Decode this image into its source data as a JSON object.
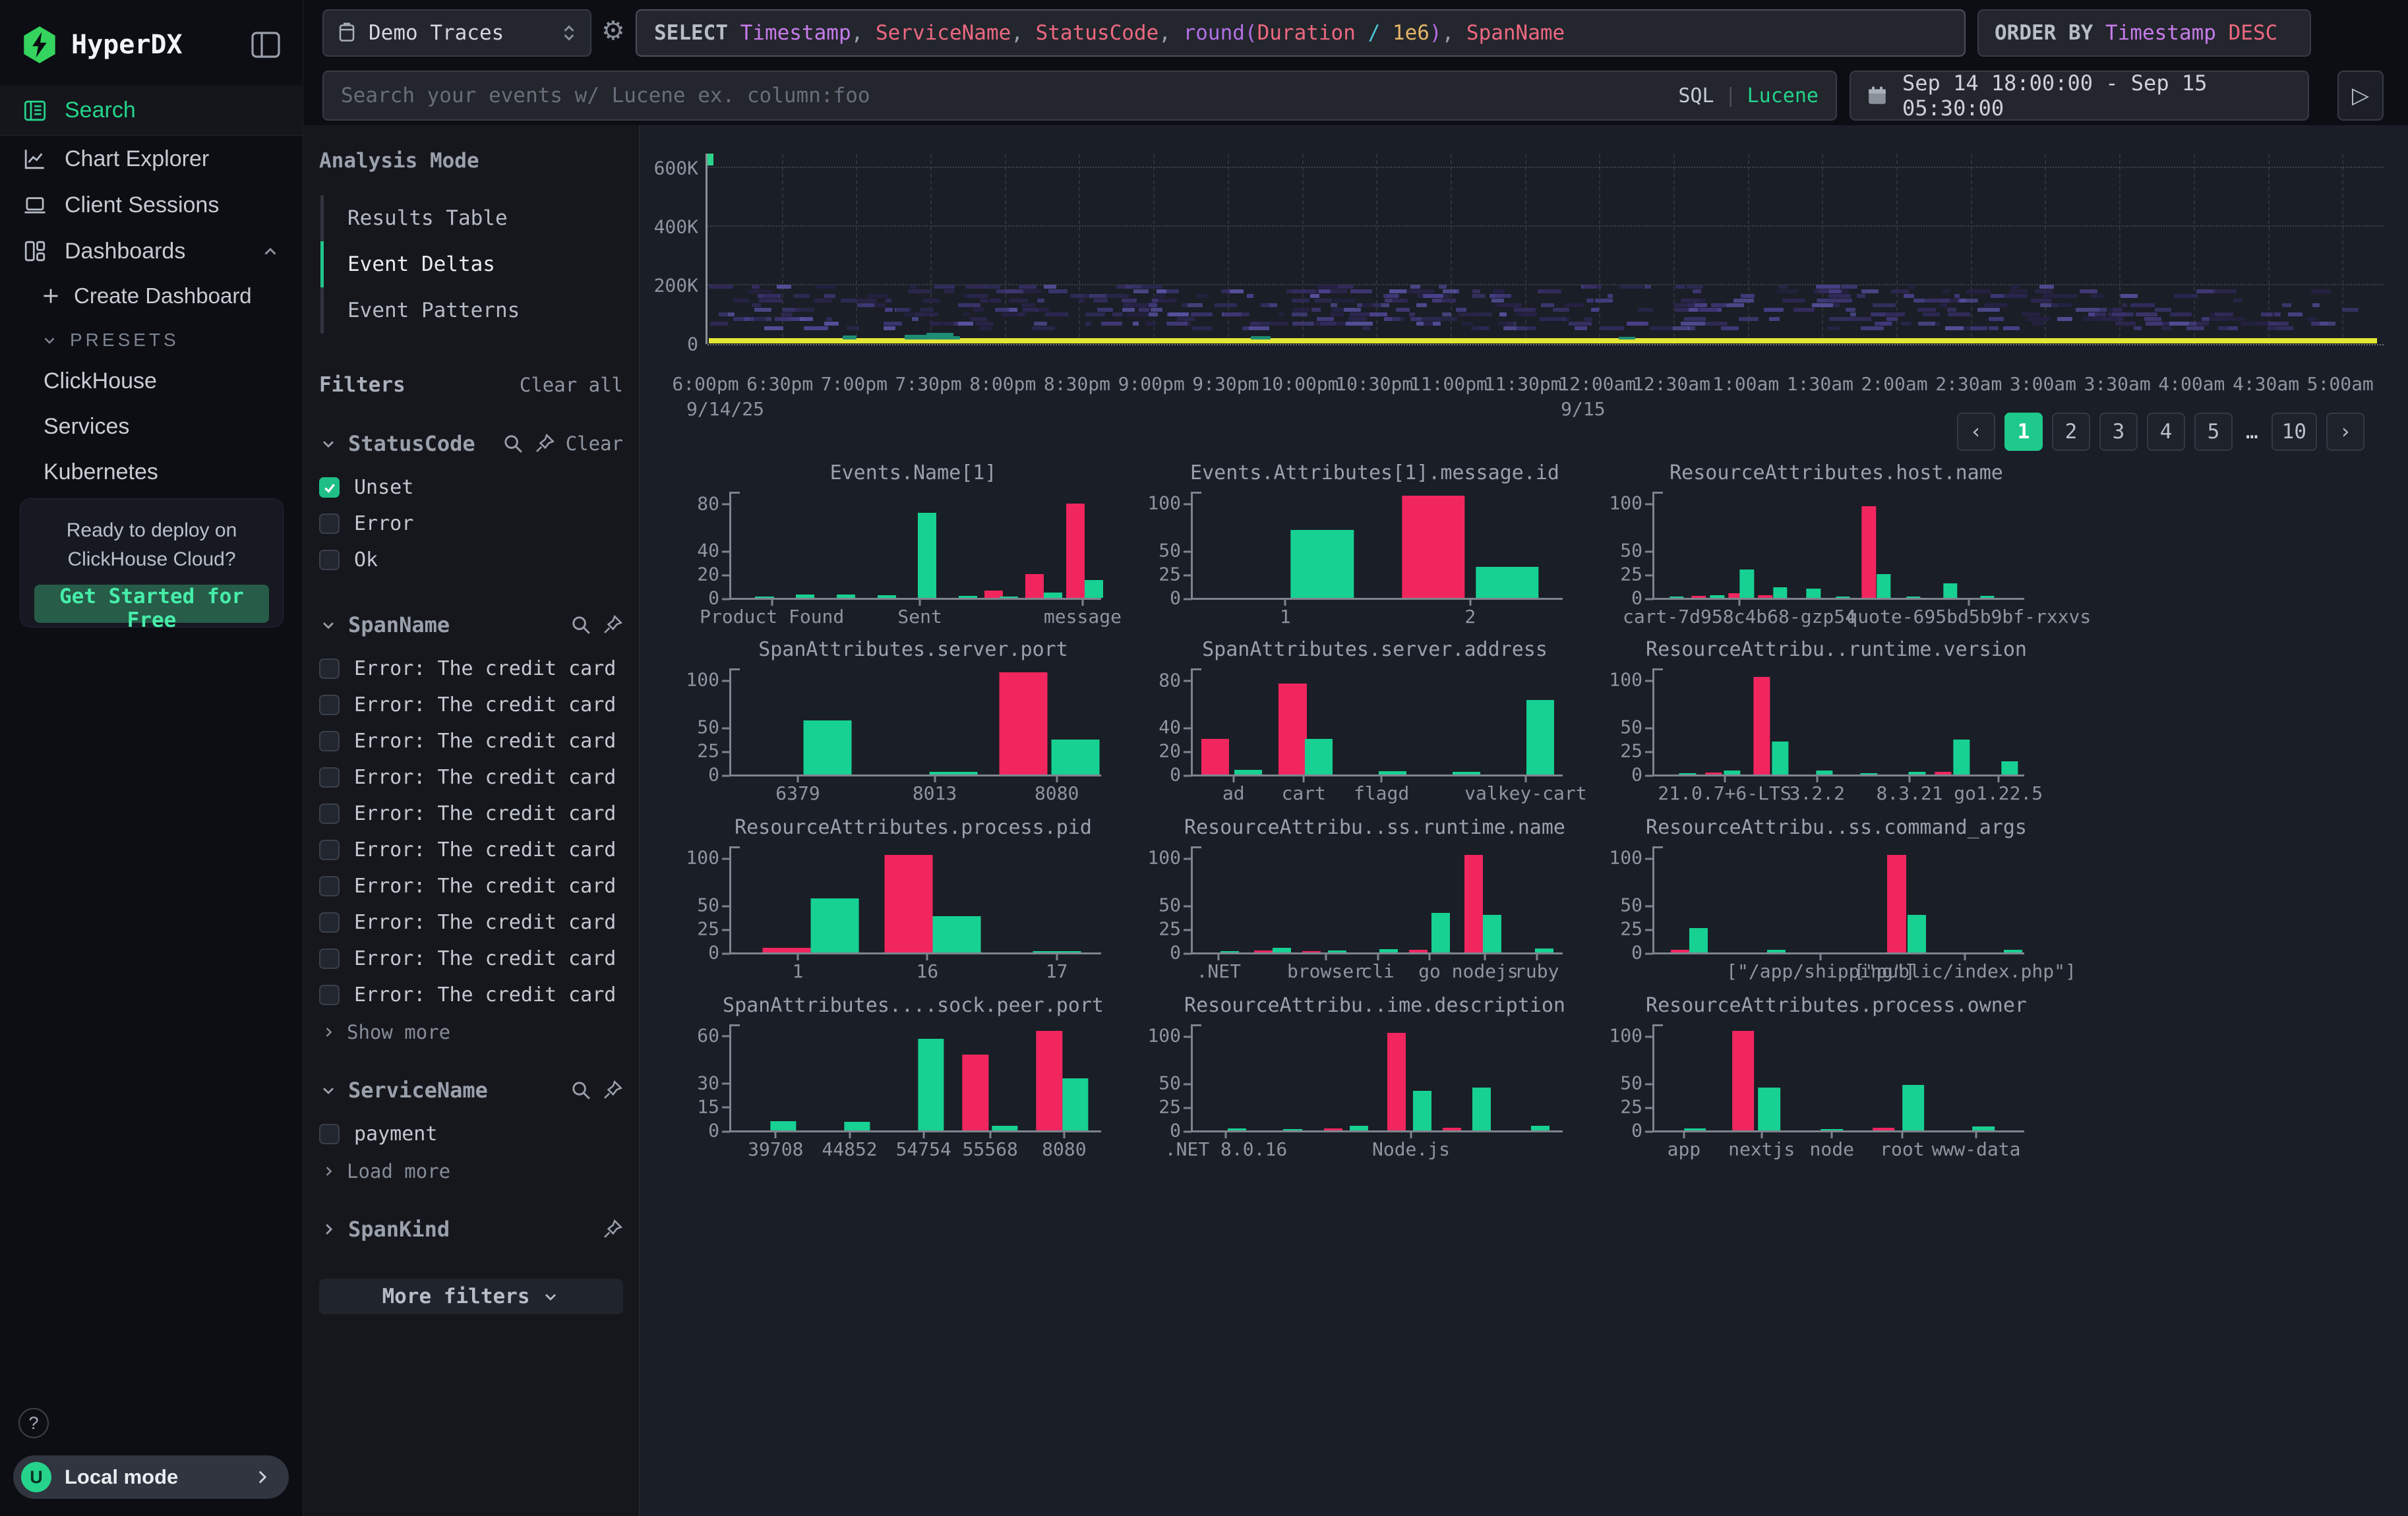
{
  "app": {
    "title": "HyperDX",
    "help_label": "?",
    "avatar_initial": "U",
    "local_mode_label": "Local mode"
  },
  "sidebar": {
    "nav": [
      {
        "label": "Search",
        "icon": "search-doc-icon",
        "active": true
      },
      {
        "label": "Chart Explorer",
        "icon": "line-chart-icon",
        "active": false
      },
      {
        "label": "Client Sessions",
        "icon": "laptop-icon",
        "active": false
      },
      {
        "label": "Dashboards",
        "icon": "dashboard-grid-icon",
        "active": false,
        "expanded": true
      }
    ],
    "create_dashboard": "Create Dashboard",
    "presets_label": "PRESETS",
    "presets": [
      "ClickHouse",
      "Services",
      "Kubernetes"
    ],
    "promo": {
      "line1": "Ready to deploy on",
      "line2": "ClickHouse Cloud?",
      "cta": "Get Started for Free"
    }
  },
  "topbar": {
    "source": {
      "label": "Demo Traces"
    },
    "select_tokens": [
      {
        "t": "SELECT ",
        "c": "kw"
      },
      {
        "t": "Timestamp",
        "c": "ident"
      },
      {
        "t": ", ",
        "c": "p"
      },
      {
        "t": "ServiceName",
        "c": "col"
      },
      {
        "t": ", ",
        "c": "p"
      },
      {
        "t": "StatusCode",
        "c": "col"
      },
      {
        "t": ", ",
        "c": "p"
      },
      {
        "t": "round",
        "c": "fn"
      },
      {
        "t": "(",
        "c": "fn"
      },
      {
        "t": "Duration",
        "c": "col"
      },
      {
        "t": " ",
        "c": "p"
      },
      {
        "t": "/",
        "c": "op"
      },
      {
        "t": " ",
        "c": "p"
      },
      {
        "t": "1e6",
        "c": "num"
      },
      {
        "t": ")",
        "c": "fn"
      },
      {
        "t": ", ",
        "c": "p"
      },
      {
        "t": "SpanName",
        "c": "col"
      }
    ],
    "order_by_tokens": [
      {
        "t": "ORDER BY ",
        "c": "kw"
      },
      {
        "t": "Timestamp",
        "c": "ident"
      },
      {
        "t": " ",
        "c": "p"
      },
      {
        "t": "DESC",
        "c": "col"
      }
    ],
    "search_placeholder": "Search your events w/ Lucene ex. column:foo",
    "mode_sql": "SQL",
    "mode_separator": "|",
    "mode_lucene": "Lucene",
    "date_range": "Sep 14 18:00:00 - Sep 15 05:30:00"
  },
  "analysis_mode": {
    "title": "Analysis Mode",
    "options": [
      {
        "label": "Results Table",
        "active": false
      },
      {
        "label": "Event Deltas",
        "active": true
      },
      {
        "label": "Event Patterns",
        "active": false
      }
    ]
  },
  "filters": {
    "title": "Filters",
    "clear_all": "Clear all",
    "groups": [
      {
        "name": "StatusCode",
        "expanded": true,
        "actions": [
          "search",
          "pin",
          "clear"
        ],
        "clear_label": "Clear",
        "items": [
          {
            "label": "Unset",
            "checked": true
          },
          {
            "label": "Error",
            "checked": false
          },
          {
            "label": "Ok",
            "checked": false
          }
        ]
      },
      {
        "name": "SpanName",
        "expanded": true,
        "actions": [
          "search",
          "pin"
        ],
        "items": [
          {
            "label": "Error: The credit card (…",
            "checked": false
          },
          {
            "label": "Error: The credit card (…",
            "checked": false
          },
          {
            "label": "Error: The credit card (…",
            "checked": false
          },
          {
            "label": "Error: The credit card (…",
            "checked": false
          },
          {
            "label": "Error: The credit card (…",
            "checked": false
          },
          {
            "label": "Error: The credit card (…",
            "checked": false
          },
          {
            "label": "Error: The credit card (…",
            "checked": false
          },
          {
            "label": "Error: The credit card (…",
            "checked": false
          },
          {
            "label": "Error: The credit card (…",
            "checked": false
          },
          {
            "label": "Error: The credit card (…",
            "checked": false
          }
        ],
        "more": "Show more"
      },
      {
        "name": "ServiceName",
        "expanded": true,
        "actions": [
          "search",
          "pin"
        ],
        "items": [
          {
            "label": "payment",
            "checked": false
          }
        ],
        "more": "Load more"
      },
      {
        "name": "SpanKind",
        "expanded": false,
        "actions": [
          "pin"
        ],
        "items": []
      }
    ],
    "more_filters": "More filters"
  },
  "pagination": {
    "prev": "‹",
    "next": "›",
    "pages": [
      "1",
      "2",
      "3",
      "4",
      "5",
      "…",
      "10"
    ],
    "active": "1"
  },
  "chart_data": [
    {
      "type": "heatmap",
      "id": "events-timeline",
      "yticks": [
        "0",
        "200K",
        "400K",
        "600K"
      ],
      "ylim": [
        0,
        650000
      ],
      "x_labels": [
        "6:00pm",
        "6:30pm",
        "7:00pm",
        "7:30pm",
        "8:00pm",
        "8:30pm",
        "9:00pm",
        "9:30pm",
        "10:00pm",
        "10:30pm",
        "11:00pm",
        "11:30pm",
        "12:00am",
        "12:30am",
        "1:00am",
        "1:30am",
        "2:00am",
        "2:30am",
        "3:00am",
        "3:30am",
        "4:00am",
        "4:30am",
        "5:00am"
      ],
      "date_labels": [
        {
          "label": "9/14/25",
          "x": 0.0
        },
        {
          "label": "9/15",
          "x": 0.525
        }
      ],
      "grid": true,
      "value_band": [
        45000,
        192000
      ],
      "block_count": 430,
      "seed": 7,
      "block_palette": [
        "#262246",
        "#322c5e",
        "#3e3775",
        "#4a418c",
        "#56519e",
        "#2b2750"
      ],
      "baseline": {
        "color": "#e3e636",
        "approx_value": 6000
      },
      "green_marks": [
        {
          "x": 0.081,
          "w": 0.008,
          "v": 14000
        },
        {
          "x": 0.118,
          "w": 0.014,
          "v": 15000
        },
        {
          "x": 0.131,
          "w": 0.016,
          "v": 22000
        },
        {
          "x": 0.141,
          "w": 0.01,
          "v": 12000
        },
        {
          "x": 0.325,
          "w": 0.012,
          "v": 11000
        },
        {
          "x": 0.545,
          "w": 0.01,
          "v": 9000
        }
      ],
      "top_marker": {
        "x": 0,
        "v": 650000,
        "color": "#2bd38b"
      }
    },
    {
      "type": "bar",
      "title": "Events.Name[1]",
      "yticks": [
        0,
        20,
        40,
        80
      ],
      "ymax": 90,
      "bar_w": 0.05,
      "bars": [
        [
          0.09,
          1,
          "g"
        ],
        [
          0.2,
          3,
          "g"
        ],
        [
          0.31,
          3,
          "g"
        ],
        [
          0.42,
          2,
          "g"
        ],
        [
          0.53,
          72,
          "g"
        ],
        [
          0.64,
          1.5,
          "g"
        ],
        [
          0.71,
          6,
          "p"
        ],
        [
          0.75,
          0.5,
          "g"
        ],
        [
          0.82,
          20,
          "p"
        ],
        [
          0.87,
          4.5,
          "g"
        ],
        [
          0.93,
          80,
          "p"
        ],
        [
          0.98,
          15,
          "g"
        ]
      ],
      "xticks": [
        [
          "Product Found",
          0.11
        ],
        [
          "Sent",
          0.51
        ],
        [
          "message",
          0.95
        ]
      ]
    },
    {
      "type": "bar",
      "title": "Events.Attributes[1].message.id",
      "yticks": [
        0,
        25,
        50,
        100
      ],
      "ymax": 112,
      "bar_w": 0.17,
      "bars": [
        [
          0.35,
          72,
          "g"
        ],
        [
          0.65,
          108,
          "p"
        ],
        [
          0.85,
          33,
          "g"
        ]
      ],
      "xticks": [
        [
          "1",
          0.25
        ],
        [
          "2",
          0.75
        ]
      ]
    },
    {
      "type": "bar",
      "title": "ResourceAttributes.host.name",
      "yticks": [
        0,
        25,
        50,
        100
      ],
      "ymax": 112,
      "bar_w": 0.038,
      "bars": [
        [
          0.06,
          1,
          "g"
        ],
        [
          0.12,
          2,
          "p"
        ],
        [
          0.17,
          3,
          "g"
        ],
        [
          0.22,
          5,
          "p"
        ],
        [
          0.25,
          30,
          "g"
        ],
        [
          0.3,
          3,
          "p"
        ],
        [
          0.34,
          11,
          "g"
        ],
        [
          0.43,
          10,
          "g"
        ],
        [
          0.51,
          0.5,
          "g"
        ],
        [
          0.58,
          97,
          "p"
        ],
        [
          0.62,
          25,
          "g"
        ],
        [
          0.7,
          0.5,
          "g"
        ],
        [
          0.8,
          15,
          "g"
        ],
        [
          0.9,
          2,
          "g"
        ]
      ],
      "xticks": [
        [
          "cart-7d958c4b68-gzp54",
          0.23
        ],
        [
          "quote-695bd5b9bf-rxxvs",
          0.85
        ]
      ]
    },
    {
      "type": "bar",
      "title": "SpanAttributes.server.port",
      "yticks": [
        0,
        25,
        50,
        100
      ],
      "ymax": 112,
      "bar_w": 0.13,
      "bars": [
        [
          0.26,
          57,
          "g"
        ],
        [
          0.6,
          3,
          "g"
        ],
        [
          0.79,
          108,
          "p"
        ],
        [
          0.93,
          37,
          "g"
        ]
      ],
      "xticks": [
        [
          "6379",
          0.18
        ],
        [
          "8013",
          0.55
        ],
        [
          "8080",
          0.88
        ]
      ]
    },
    {
      "type": "bar",
      "title": "SpanAttributes.server.address",
      "yticks": [
        0,
        20,
        40,
        80
      ],
      "ymax": 90,
      "bar_w": 0.075,
      "bars": [
        [
          0.06,
          30,
          "p"
        ],
        [
          0.15,
          4,
          "g"
        ],
        [
          0.27,
          77,
          "p"
        ],
        [
          0.34,
          30,
          "g"
        ],
        [
          0.54,
          3,
          "g"
        ],
        [
          0.74,
          2,
          "g"
        ],
        [
          0.94,
          63,
          "g"
        ]
      ],
      "xticks": [
        [
          "ad",
          0.11
        ],
        [
          "cart",
          0.3
        ],
        [
          "flagd",
          0.51
        ],
        [
          "valkey-cart",
          0.9
        ]
      ]
    },
    {
      "type": "bar",
      "title": "ResourceAttribu..runtime.version",
      "yticks": [
        0,
        25,
        50,
        100
      ],
      "ymax": 112,
      "bar_w": 0.045,
      "bars": [
        [
          0.09,
          0.5,
          "g"
        ],
        [
          0.16,
          2,
          "p"
        ],
        [
          0.21,
          4,
          "g"
        ],
        [
          0.29,
          103,
          "p"
        ],
        [
          0.34,
          35,
          "g"
        ],
        [
          0.46,
          4,
          "g"
        ],
        [
          0.58,
          1.5,
          "g"
        ],
        [
          0.71,
          3,
          "g"
        ],
        [
          0.78,
          3,
          "p"
        ],
        [
          0.83,
          37,
          "g"
        ],
        [
          0.96,
          14,
          "g"
        ]
      ],
      "xticks": [
        [
          "21.0.7+6-LTS",
          0.19
        ],
        [
          "3.2.2",
          0.44
        ],
        [
          "8.3.21",
          0.69
        ],
        [
          "go1.22.5",
          0.93
        ]
      ]
    },
    {
      "type": "bar",
      "title": "ResourceAttributes.process.pid",
      "yticks": [
        0,
        25,
        50,
        100
      ],
      "ymax": 112,
      "bar_w": 0.13,
      "bars": [
        [
          0.15,
          5,
          "p"
        ],
        [
          0.28,
          57,
          "g"
        ],
        [
          0.48,
          103,
          "p"
        ],
        [
          0.61,
          38,
          "g"
        ],
        [
          0.88,
          0.8,
          "g"
        ]
      ],
      "xticks": [
        [
          "1",
          0.18
        ],
        [
          "16",
          0.53
        ],
        [
          "17",
          0.88
        ]
      ]
    },
    {
      "type": "bar",
      "title": "ResourceAttribu..ss.runtime.name",
      "yticks": [
        0,
        25,
        50,
        100
      ],
      "ymax": 112,
      "bar_w": 0.05,
      "bars": [
        [
          0.1,
          1.5,
          "g"
        ],
        [
          0.19,
          2,
          "p"
        ],
        [
          0.24,
          5,
          "g"
        ],
        [
          0.32,
          0.5,
          "p"
        ],
        [
          0.39,
          2,
          "g"
        ],
        [
          0.53,
          3.5,
          "g"
        ],
        [
          0.61,
          3,
          "p"
        ],
        [
          0.67,
          42,
          "g"
        ],
        [
          0.76,
          103,
          "p"
        ],
        [
          0.81,
          40,
          "g"
        ],
        [
          0.95,
          4.5,
          "g"
        ]
      ],
      "xticks": [
        [
          ".NET",
          0.07
        ],
        [
          "browser",
          0.36
        ],
        [
          "cli",
          0.5
        ],
        [
          "go",
          0.64
        ],
        [
          "nodejs",
          0.79
        ],
        [
          "ruby",
          0.93
        ]
      ]
    },
    {
      "type": "bar",
      "title": "ResourceAttribu..ss.command_args",
      "yticks": [
        0,
        25,
        50,
        100
      ],
      "ymax": 112,
      "bar_w": 0.05,
      "bars": [
        [
          0.07,
          3,
          "p"
        ],
        [
          0.12,
          26,
          "g"
        ],
        [
          0.33,
          3,
          "g"
        ],
        [
          0.655,
          103,
          "p"
        ],
        [
          0.71,
          40,
          "g"
        ],
        [
          0.97,
          3,
          "g"
        ]
      ],
      "xticks": [
        [
          "[\"/app/shipping\"]",
          0.45
        ],
        [
          "[\"public/index.php\"]",
          0.84
        ]
      ]
    },
    {
      "type": "bar",
      "title": "SpanAttributes....sock.peer.port",
      "yticks": [
        0,
        15,
        30,
        60
      ],
      "ymax": 67,
      "bar_w": 0.07,
      "bars": [
        [
          0.14,
          6,
          "g"
        ],
        [
          0.34,
          5.5,
          "g"
        ],
        [
          0.54,
          58,
          "g"
        ],
        [
          0.66,
          48,
          "p"
        ],
        [
          0.74,
          3,
          "g"
        ],
        [
          0.86,
          63,
          "p"
        ],
        [
          0.93,
          33,
          "g"
        ]
      ],
      "xticks": [
        [
          "39708",
          0.12
        ],
        [
          "44852",
          0.32
        ],
        [
          "54754",
          0.52
        ],
        [
          "55568",
          0.7
        ],
        [
          "8080",
          0.9
        ]
      ]
    },
    {
      "type": "bar",
      "title": "ResourceAttribu..ime.description",
      "yticks": [
        0,
        25,
        50,
        100
      ],
      "ymax": 112,
      "bar_w": 0.05,
      "bars": [
        [
          0.12,
          2,
          "g"
        ],
        [
          0.27,
          0.5,
          "g"
        ],
        [
          0.38,
          2,
          "p"
        ],
        [
          0.45,
          5,
          "g"
        ],
        [
          0.55,
          103,
          "p"
        ],
        [
          0.62,
          42,
          "g"
        ],
        [
          0.7,
          3,
          "p"
        ],
        [
          0.78,
          45,
          "g"
        ],
        [
          0.94,
          5,
          "g"
        ]
      ],
      "xticks": [
        [
          ".NET 8.0.16",
          0.09
        ],
        [
          "Node.js",
          0.59
        ]
      ]
    },
    {
      "type": "bar",
      "title": "ResourceAttributes.process.owner",
      "yticks": [
        0,
        25,
        50,
        100
      ],
      "ymax": 112,
      "bar_w": 0.06,
      "bars": [
        [
          0.11,
          2,
          "g"
        ],
        [
          0.24,
          105,
          "p"
        ],
        [
          0.31,
          45,
          "g"
        ],
        [
          0.48,
          0.8,
          "g"
        ],
        [
          0.62,
          3,
          "p"
        ],
        [
          0.7,
          48,
          "g"
        ],
        [
          0.89,
          4,
          "g"
        ]
      ],
      "xticks": [
        [
          "app",
          0.08
        ],
        [
          "nextjs",
          0.29
        ],
        [
          "node",
          0.48
        ],
        [
          "root",
          0.67
        ],
        [
          "www-data",
          0.87
        ]
      ]
    }
  ]
}
